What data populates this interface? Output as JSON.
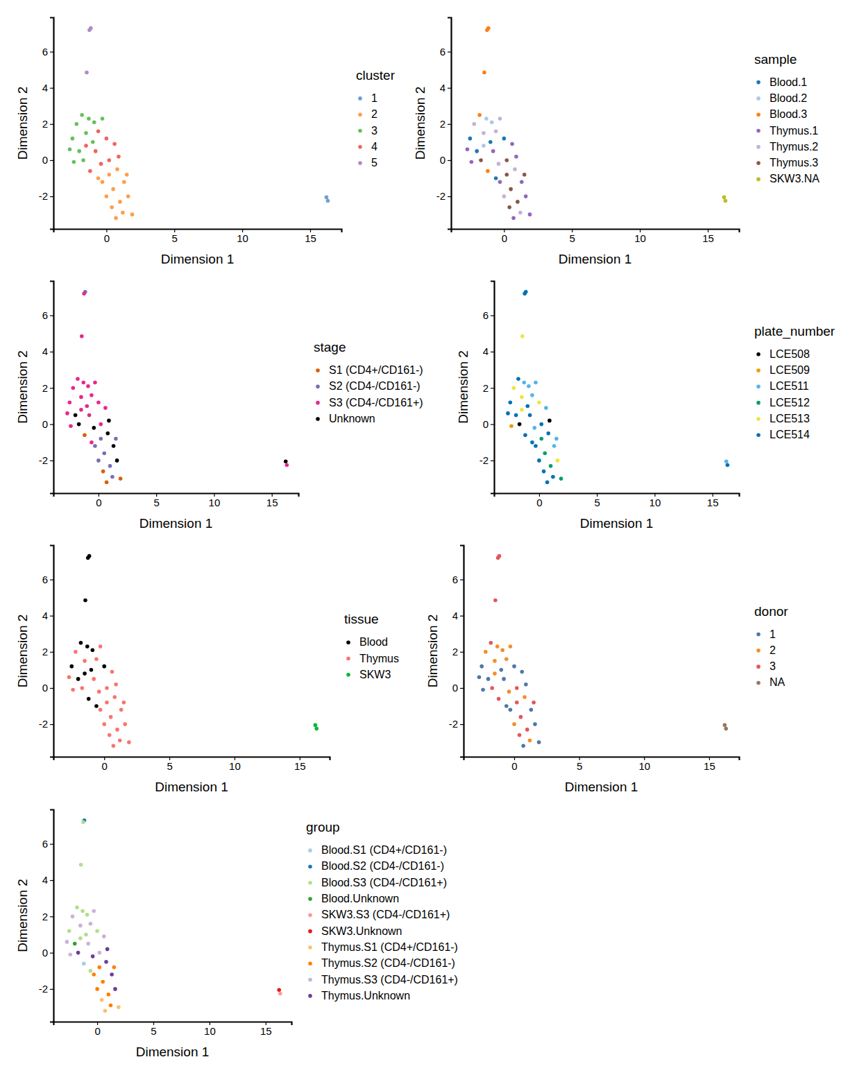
{
  "chart_data": [
    {
      "type": "scatter",
      "xlabel": "Dimension 1",
      "ylabel": "Dimension 2",
      "legend_title": "cluster",
      "legend": "right",
      "xlim": [
        -3.9,
        17.3
      ],
      "ylim": [
        -3.8,
        7.9
      ],
      "xticks": [
        0,
        5,
        10,
        15
      ],
      "yticks": [
        -2,
        0,
        2,
        4,
        6
      ],
      "series": [
        {
          "name": "1",
          "color": "#729ECE",
          "x": [
            16.2,
            16.3
          ],
          "values": [
            -2.05,
            -2.25
          ]
        },
        {
          "name": "2",
          "color": "#FF9E4A",
          "x": [
            0.2,
            0.8,
            -0.3,
            0.5,
            1.3,
            0.0,
            1.0,
            1.6,
            0.4,
            1.2,
            1.9,
            -0.6,
            1.5,
            0.7
          ],
          "values": [
            -0.8,
            -0.5,
            -1.2,
            -1.6,
            -1.2,
            -2.0,
            -2.3,
            -2.0,
            -2.6,
            -2.9,
            -3.0,
            -1.0,
            -0.8,
            -3.2
          ]
        },
        {
          "name": "3",
          "color": "#67BF5C",
          "x": [
            -2.5,
            -2.2,
            -1.8,
            -1.3,
            -2.7,
            -2.0,
            -1.5,
            -0.9,
            -2.4,
            -1.0,
            -0.3,
            -1.7
          ],
          "values": [
            1.2,
            2.0,
            2.5,
            2.3,
            0.6,
            0.5,
            1.5,
            2.1,
            -0.1,
            1.0,
            2.3,
            0.0
          ]
        },
        {
          "name": "4",
          "color": "#ED665D",
          "x": [
            -0.8,
            0.0,
            -0.4,
            0.6,
            -1.2,
            0.2,
            -0.6,
            -1.5,
            0.9
          ],
          "values": [
            0.5,
            1.2,
            -0.2,
            0.9,
            -0.6,
            0.0,
            1.6,
            0.8,
            0.2
          ]
        },
        {
          "name": "5",
          "color": "#AD8BC9",
          "x": [
            -1.15,
            -1.25,
            -1.45
          ],
          "values": [
            7.3,
            7.2,
            4.85
          ]
        }
      ]
    },
    {
      "type": "scatter",
      "xlabel": "Dimension 1",
      "ylabel": "Dimension 2",
      "legend_title": "sample",
      "legend": "right",
      "xlim": [
        -3.9,
        17.3
      ],
      "ylim": [
        -3.8,
        7.9
      ],
      "xticks": [
        0,
        5,
        10,
        15
      ],
      "yticks": [
        -2,
        0,
        2,
        4,
        6
      ],
      "series": [
        {
          "name": "Blood.1",
          "color": "#1F77B4",
          "x": [
            -2.5,
            -2.0,
            -1.0,
            0.0,
            -0.6
          ],
          "values": [
            1.2,
            0.5,
            1.0,
            1.2,
            -1.0
          ]
        },
        {
          "name": "Blood.2",
          "color": "#AEC7E8",
          "x": [
            -1.3,
            -0.9,
            -1.5
          ],
          "values": [
            2.3,
            2.1,
            0.8
          ]
        },
        {
          "name": "Blood.3",
          "color": "#FF7F0E",
          "x": [
            -1.8,
            -1.2,
            -1.15,
            -1.25,
            -1.45
          ],
          "values": [
            2.5,
            -0.6,
            7.3,
            7.2,
            4.85
          ]
        },
        {
          "name": "Thymus.1",
          "color": "#9467BD",
          "x": [
            -2.7,
            -2.4,
            -0.8,
            0.6,
            0.9,
            -0.3,
            1.3,
            1.6,
            1.9,
            0.7
          ],
          "values": [
            0.6,
            -0.1,
            0.5,
            0.9,
            0.2,
            -1.2,
            -1.2,
            -2.0,
            -3.0,
            -3.2
          ]
        },
        {
          "name": "Thymus.2",
          "color": "#C5B0D5",
          "x": [
            -2.2,
            -1.5,
            -0.3,
            -0.4,
            -0.6,
            0.8,
            0.0,
            1.2
          ],
          "values": [
            2.0,
            1.5,
            2.3,
            -0.2,
            1.6,
            -0.5,
            -2.0,
            -2.9
          ]
        },
        {
          "name": "Thymus.3",
          "color": "#8C564B",
          "x": [
            -1.7,
            0.2,
            0.2,
            0.5,
            1.0,
            0.4,
            1.5
          ],
          "values": [
            0.0,
            0.0,
            -0.8,
            -1.6,
            -2.3,
            -2.6,
            -0.8
          ]
        },
        {
          "name": "SKW3.NA",
          "color": "#BCBD22",
          "x": [
            16.2,
            16.3
          ],
          "values": [
            -2.05,
            -2.25
          ]
        }
      ]
    },
    {
      "type": "scatter",
      "xlabel": "Dimension 1",
      "ylabel": "Dimension 2",
      "legend_title": "stage",
      "legend": "right",
      "xlim": [
        -3.9,
        17.3
      ],
      "ylim": [
        -3.8,
        7.9
      ],
      "xticks": [
        0,
        5,
        10,
        15
      ],
      "yticks": [
        -2,
        0,
        2,
        4,
        6
      ],
      "series": [
        {
          "name": "S1 (CD4+/CD161-)",
          "color": "#D95F02",
          "x": [
            -1.2,
            0.4,
            1.9,
            0.7
          ],
          "values": [
            -0.6,
            -2.6,
            -3.0,
            -3.2
          ]
        },
        {
          "name": "S2 (CD4-/CD161-)",
          "color": "#7570B3",
          "x": [
            0.2,
            -0.3,
            0.5,
            0.0,
            1.0,
            1.2,
            1.5,
            -1.15
          ],
          "values": [
            -0.8,
            -1.2,
            -1.6,
            -2.0,
            -2.3,
            -2.9,
            -0.8,
            7.3
          ]
        },
        {
          "name": "S3 (CD4-/CD161+)",
          "color": "#E7298A",
          "x": [
            -2.5,
            -2.2,
            -1.8,
            -1.3,
            -2.7,
            -1.5,
            -0.9,
            -2.4,
            -1.0,
            -0.3,
            -0.8,
            0.0,
            0.6,
            0.2,
            -0.6,
            -1.5,
            -0.6,
            16.3,
            -1.25,
            -1.45
          ],
          "values": [
            1.2,
            2.0,
            2.5,
            2.3,
            0.6,
            1.5,
            2.1,
            -0.1,
            1.0,
            2.3,
            0.5,
            1.2,
            0.9,
            0.0,
            1.6,
            0.8,
            -1.0,
            -2.25,
            7.2,
            4.85
          ]
        },
        {
          "name": "Unknown",
          "color": "#000000",
          "x": [
            -2.0,
            -1.7,
            -0.4,
            0.9,
            0.8,
            1.3,
            1.6,
            16.2
          ],
          "values": [
            0.5,
            0.0,
            -0.2,
            0.2,
            -0.5,
            -1.2,
            -2.0,
            -2.05
          ]
        }
      ]
    },
    {
      "type": "scatter",
      "xlabel": "Dimension 1",
      "ylabel": "Dimension 2",
      "legend_title": "plate_number",
      "legend": "right",
      "xlim": [
        -3.9,
        17.3
      ],
      "ylim": [
        -3.8,
        7.9
      ],
      "xticks": [
        0,
        5,
        10,
        15
      ],
      "yticks": [
        -2,
        0,
        2,
        4,
        6
      ],
      "series": [
        {
          "name": "LCE508",
          "color": "#000000",
          "x": [
            -1.7,
            0.9
          ],
          "values": [
            0.0,
            0.2
          ]
        },
        {
          "name": "LCE509",
          "color": "#E69F00",
          "x": [
            -2.4
          ],
          "values": [
            -0.1
          ]
        },
        {
          "name": "LCE511",
          "color": "#56B4E9",
          "x": [
            -1.3,
            -0.9,
            -0.3,
            -0.4,
            0.6,
            -0.6,
            1.3,
            1.5,
            16.2
          ],
          "values": [
            2.3,
            2.1,
            2.3,
            -0.2,
            0.9,
            1.6,
            -1.2,
            -0.8,
            -2.05
          ]
        },
        {
          "name": "LCE512",
          "color": "#009E73",
          "x": [
            0.2,
            0.5,
            1.0,
            1.9
          ],
          "values": [
            -0.8,
            -1.6,
            -2.3,
            -3.0
          ]
        },
        {
          "name": "LCE513",
          "color": "#F0E442",
          "x": [
            -2.2,
            -1.5,
            0.0,
            -1.5,
            1.6,
            -1.45
          ],
          "values": [
            2.0,
            1.5,
            1.2,
            0.8,
            -2.0,
            4.85
          ]
        },
        {
          "name": "LCE514",
          "color": "#0072B2",
          "x": [
            -2.5,
            -1.8,
            -2.7,
            -2.0,
            -1.0,
            -0.8,
            -1.2,
            0.2,
            0.8,
            -0.3,
            0.0,
            0.4,
            1.2,
            -0.6,
            0.7,
            16.3,
            -1.15,
            -1.25
          ],
          "values": [
            1.2,
            2.5,
            0.6,
            0.5,
            1.0,
            0.5,
            -0.6,
            0.0,
            -0.5,
            -1.2,
            -2.0,
            -2.6,
            -2.9,
            -1.0,
            -3.2,
            -2.25,
            7.3,
            7.2
          ]
        }
      ]
    },
    {
      "type": "scatter",
      "xlabel": "Dimension 1",
      "ylabel": "Dimension 2",
      "legend_title": "tissue",
      "legend": "right",
      "xlim": [
        -3.9,
        17.3
      ],
      "ylim": [
        -3.8,
        7.9
      ],
      "xticks": [
        0,
        5,
        10,
        15
      ],
      "yticks": [
        -2,
        0,
        2,
        4,
        6
      ],
      "series": [
        {
          "name": "Blood",
          "color": "#000000",
          "x": [
            -2.5,
            -1.8,
            -1.3,
            -2.0,
            -0.9,
            -1.0,
            0.0,
            -1.2,
            -1.5,
            -0.6,
            -1.15,
            -1.25,
            -1.45
          ],
          "values": [
            1.2,
            2.5,
            2.3,
            0.5,
            2.1,
            1.0,
            1.2,
            -0.6,
            0.8,
            -1.0,
            7.3,
            7.2,
            4.85
          ]
        },
        {
          "name": "Thymus",
          "color": "#F8766D",
          "x": [
            -2.2,
            -2.7,
            -1.5,
            -2.4,
            -0.3,
            -1.7,
            -0.8,
            -0.4,
            0.6,
            0.2,
            -0.6,
            0.9,
            0.2,
            0.8,
            -0.3,
            0.5,
            1.3,
            0.0,
            1.0,
            1.6,
            0.4,
            1.2,
            1.9,
            1.5,
            0.7
          ],
          "values": [
            2.0,
            0.6,
            1.5,
            -0.1,
            2.3,
            0.0,
            0.5,
            -0.2,
            0.9,
            0.0,
            1.6,
            0.2,
            -0.8,
            -0.5,
            -1.2,
            -1.6,
            -1.2,
            -2.0,
            -2.3,
            -2.0,
            -2.6,
            -2.9,
            -3.0,
            -0.8,
            -3.2
          ]
        },
        {
          "name": "SKW3",
          "color": "#00BA38",
          "x": [
            16.2,
            16.3
          ],
          "values": [
            -2.05,
            -2.25
          ]
        }
      ]
    },
    {
      "type": "scatter",
      "xlabel": "Dimension 1",
      "ylabel": "Dimension 2",
      "legend_title": "donor",
      "legend": "right",
      "xlim": [
        -3.9,
        17.3
      ],
      "ylim": [
        -3.8,
        7.9
      ],
      "xticks": [
        0,
        5,
        10,
        15
      ],
      "yticks": [
        -2,
        0,
        2,
        4,
        6
      ],
      "series": [
        {
          "name": "1",
          "color": "#4E79A7",
          "x": [
            -2.5,
            -2.0,
            -1.0,
            0.0,
            -0.6,
            -2.7,
            -2.4,
            -0.8,
            0.6,
            0.9,
            -0.3,
            1.3,
            1.6,
            1.9,
            0.7
          ],
          "values": [
            1.2,
            0.5,
            1.0,
            1.2,
            -1.0,
            0.6,
            -0.1,
            0.5,
            0.9,
            0.2,
            -1.2,
            -1.2,
            -2.0,
            -3.0,
            -3.2
          ]
        },
        {
          "name": "2",
          "color": "#F28E2B",
          "x": [
            -1.3,
            -0.9,
            -1.5,
            -2.2,
            -1.5,
            -0.3,
            -0.4,
            -0.6,
            0.8,
            0.0,
            1.2
          ],
          "values": [
            2.3,
            2.1,
            0.8,
            2.0,
            1.5,
            2.3,
            -0.2,
            1.6,
            -0.5,
            -2.0,
            -2.9
          ]
        },
        {
          "name": "3",
          "color": "#E15759",
          "x": [
            -1.8,
            -1.2,
            -1.15,
            -1.25,
            -1.45,
            -1.7,
            0.2,
            0.2,
            0.5,
            1.0,
            0.4,
            1.5
          ],
          "values": [
            2.5,
            -0.6,
            7.3,
            7.2,
            4.85,
            0.0,
            0.0,
            -0.8,
            -1.6,
            -2.3,
            -2.6,
            -0.8
          ]
        },
        {
          "name": "NA",
          "color": "#9C755F",
          "x": [
            16.2,
            16.3
          ],
          "values": [
            -2.05,
            -2.25
          ]
        }
      ]
    },
    {
      "type": "scatter",
      "xlabel": "Dimension 1",
      "ylabel": "Dimension 2",
      "legend_title": "group",
      "legend": "right",
      "xlim": [
        -3.9,
        17.3
      ],
      "ylim": [
        -3.8,
        7.9
      ],
      "xticks": [
        0,
        5,
        10,
        15
      ],
      "yticks": [
        -2,
        0,
        2,
        4,
        6
      ],
      "series": [
        {
          "name": "Blood.S1 (CD4+/CD161-)",
          "color": "#A6CEE3",
          "x": [
            -1.2
          ],
          "values": [
            -0.6
          ]
        },
        {
          "name": "Blood.S2 (CD4-/CD161-)",
          "color": "#1F78B4",
          "x": [
            -1.15
          ],
          "values": [
            7.3
          ]
        },
        {
          "name": "Blood.S3 (CD4-/CD161+)",
          "color": "#B2DF8A",
          "x": [
            -2.5,
            -1.8,
            -1.3,
            -0.9,
            -1.0,
            0.0,
            -1.5,
            -0.6,
            -1.25,
            -1.45
          ],
          "values": [
            1.2,
            2.5,
            2.3,
            2.1,
            1.0,
            1.2,
            0.8,
            -1.0,
            7.2,
            4.85
          ]
        },
        {
          "name": "Blood.Unknown",
          "color": "#33A02C",
          "x": [
            -2.0
          ],
          "values": [
            0.5
          ]
        },
        {
          "name": "SKW3.S3 (CD4-/CD161+)",
          "color": "#FB9A99",
          "x": [
            16.3
          ],
          "values": [
            -2.25
          ]
        },
        {
          "name": "SKW3.Unknown",
          "color": "#E31A1C",
          "x": [
            16.2
          ],
          "values": [
            -2.05
          ]
        },
        {
          "name": "Thymus.S1 (CD4+/CD161-)",
          "color": "#FDBF6F",
          "x": [
            0.4,
            1.9,
            0.7
          ],
          "values": [
            -2.6,
            -3.0,
            -3.2
          ]
        },
        {
          "name": "Thymus.S2 (CD4-/CD161-)",
          "color": "#FF7F00",
          "x": [
            0.2,
            -0.3,
            0.5,
            0.0,
            1.0,
            1.2,
            1.5
          ],
          "values": [
            -0.8,
            -1.2,
            -1.6,
            -2.0,
            -2.3,
            -2.9,
            -0.8
          ]
        },
        {
          "name": "Thymus.S3 (CD4-/CD161+)",
          "color": "#CAB2D6",
          "x": [
            -2.2,
            -2.7,
            -1.5,
            -2.4,
            -0.3,
            -0.8,
            0.6,
            0.2,
            -0.6
          ],
          "values": [
            2.0,
            0.6,
            1.5,
            -0.1,
            2.3,
            0.5,
            0.9,
            0.0,
            1.6
          ]
        },
        {
          "name": "Thymus.Unknown",
          "color": "#6A3D9A",
          "x": [
            -1.7,
            -0.4,
            0.9,
            0.8,
            1.3,
            1.6
          ],
          "values": [
            0.0,
            -0.2,
            0.2,
            -0.5,
            -1.2,
            -2.0
          ]
        }
      ]
    }
  ]
}
